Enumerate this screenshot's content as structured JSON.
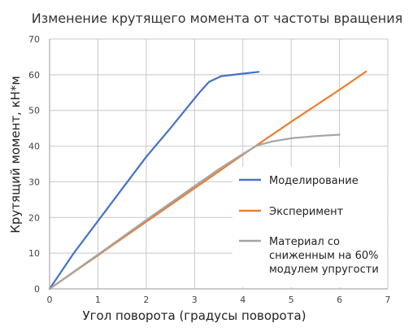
{
  "chart_data": {
    "type": "line",
    "title": "Изменение крутящего момента от частоты вращения",
    "xlabel": "Угол поворота (градусы поворота)",
    "ylabel": "Крутящий момент, кН*м",
    "xlim": [
      0,
      7
    ],
    "ylim": [
      0,
      70
    ],
    "xticks": [
      0,
      1,
      2,
      3,
      4,
      5,
      6,
      7
    ],
    "yticks": [
      0,
      10,
      20,
      30,
      40,
      50,
      60,
      70
    ],
    "grid": true,
    "legend_position": "right",
    "series": [
      {
        "name": "Моделирование",
        "color": "#4472c4",
        "points": [
          [
            0,
            0
          ],
          [
            0.5,
            10
          ],
          [
            1,
            19
          ],
          [
            1.5,
            28
          ],
          [
            2,
            37
          ],
          [
            2.5,
            45
          ],
          [
            2.8,
            50
          ],
          [
            3.1,
            55
          ],
          [
            3.3,
            58
          ],
          [
            3.55,
            59.6
          ],
          [
            4.0,
            60.3
          ],
          [
            4.33,
            60.8
          ]
        ]
      },
      {
        "name": "Эксперимент",
        "color": "#ed7d31",
        "points": [
          [
            0,
            0
          ],
          [
            1,
            9.4
          ],
          [
            2,
            18.8
          ],
          [
            3,
            28.2
          ],
          [
            4,
            37.6
          ],
          [
            5,
            46.8
          ],
          [
            6,
            55.8
          ],
          [
            6.55,
            60.9
          ]
        ]
      },
      {
        "name": "Материал со сниженным на 60% модулем упругости",
        "color": "#a5a5a5",
        "legend_lines": [
          "Материал со",
          "сниженным на 60%",
          "модулем упругости"
        ],
        "points": [
          [
            0,
            0
          ],
          [
            1,
            9.6
          ],
          [
            2,
            19.3
          ],
          [
            3,
            28.8
          ],
          [
            3.5,
            33.5
          ],
          [
            4,
            37.8
          ],
          [
            4.3,
            40.2
          ],
          [
            4.6,
            41.3
          ],
          [
            5,
            42.2
          ],
          [
            5.5,
            42.8
          ],
          [
            6,
            43.2
          ]
        ]
      }
    ]
  }
}
